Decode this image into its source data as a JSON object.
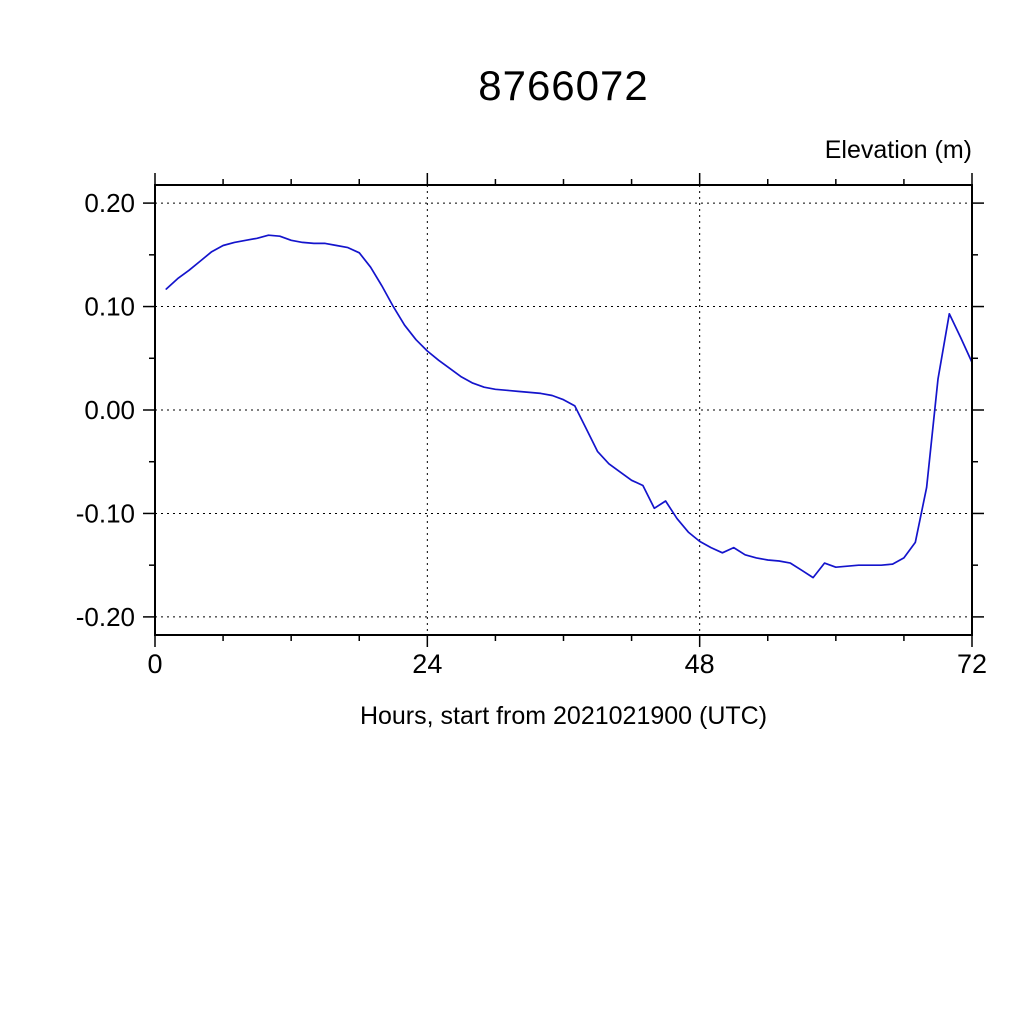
{
  "chart_data": {
    "type": "line",
    "title": "8766072",
    "ylabel": "Elevation (m)",
    "xlabel": "Hours, start from 2021021900 (UTC)",
    "xlim": [
      0,
      72
    ],
    "ylim": [
      -0.2175,
      0.2175
    ],
    "xticks": [
      {
        "v": 0,
        "label": "0"
      },
      {
        "v": 24,
        "label": "24"
      },
      {
        "v": 48,
        "label": "48"
      },
      {
        "v": 72,
        "label": "72"
      }
    ],
    "xminor_step": 6,
    "yticks": [
      {
        "v": 0.2,
        "label": "0.20"
      },
      {
        "v": 0.1,
        "label": "0.10"
      },
      {
        "v": 0.0,
        "label": "0.00"
      },
      {
        "v": -0.1,
        "label": "-0.10"
      },
      {
        "v": -0.2,
        "label": "-0.20"
      }
    ],
    "yminor_step": 0.05,
    "xgrid": [
      24,
      48
    ],
    "ygrid": [
      0.2,
      0.1,
      0.0,
      -0.1,
      -0.2
    ],
    "grid": true,
    "legend": "none",
    "line_color": "#1414CC",
    "frame_color": "#000000",
    "series": [
      {
        "name": "elevation",
        "x": [
          1,
          2,
          3,
          4,
          5,
          6,
          7,
          8,
          9,
          10,
          11,
          12,
          13,
          14,
          15,
          16,
          17,
          18,
          19,
          20,
          21,
          22,
          23,
          24,
          25,
          26,
          27,
          28,
          29,
          30,
          31,
          32,
          33,
          34,
          35,
          36,
          37,
          38,
          39,
          40,
          41,
          42,
          43,
          44,
          45,
          46,
          47,
          48,
          49,
          50,
          51,
          52,
          53,
          54,
          55,
          56,
          57,
          58,
          59,
          60,
          61,
          62,
          63,
          64,
          65,
          66,
          67,
          68,
          69,
          70,
          71,
          72
        ],
        "y": [
          0.117,
          0.127,
          0.135,
          0.144,
          0.153,
          0.159,
          0.162,
          0.164,
          0.166,
          0.169,
          0.168,
          0.164,
          0.162,
          0.161,
          0.161,
          0.159,
          0.157,
          0.152,
          0.138,
          0.12,
          0.1,
          0.082,
          0.068,
          0.057,
          0.048,
          0.04,
          0.032,
          0.026,
          0.022,
          0.02,
          0.019,
          0.018,
          0.017,
          0.016,
          0.014,
          0.01,
          0.004,
          -0.018,
          -0.04,
          -0.052,
          -0.06,
          -0.068,
          -0.073,
          -0.095,
          -0.088,
          -0.105,
          -0.118,
          -0.127,
          -0.133,
          -0.138,
          -0.133,
          -0.14,
          -0.143,
          -0.145,
          -0.146,
          -0.148,
          -0.155,
          -0.162,
          -0.148,
          -0.152,
          -0.151,
          -0.15,
          -0.15,
          -0.15,
          -0.149,
          -0.143,
          -0.128,
          -0.075,
          0.03,
          0.093,
          0.07,
          0.046
        ]
      }
    ]
  }
}
